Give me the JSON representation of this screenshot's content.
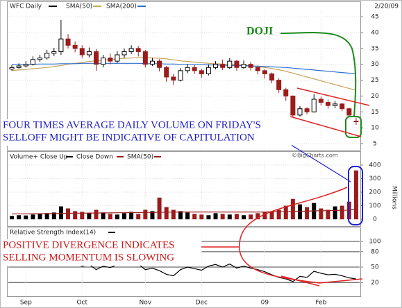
{
  "chart_data": [
    {
      "type": "candlestick",
      "title": "WFC Daily",
      "date": "2/20/09",
      "up_color": "#000000",
      "down_color": "#9b1c1c",
      "open": [
        28.5,
        29,
        29.5,
        30,
        31.5,
        32,
        33.5,
        34,
        38,
        36,
        35,
        33,
        34,
        30,
        32,
        31,
        33,
        34,
        35,
        34,
        30,
        31,
        29,
        26,
        25,
        28,
        29,
        28,
        27,
        29,
        30,
        29,
        31,
        29,
        30,
        29,
        28,
        27,
        25,
        22,
        20,
        14,
        16,
        15,
        19,
        18,
        17,
        17.5,
        16,
        12.1
      ],
      "high": [
        29.8,
        30.3,
        31,
        32.5,
        33,
        34.5,
        35.2,
        44,
        39.5,
        37.2,
        36,
        35.3,
        34.8,
        33,
        33.4,
        34.2,
        35,
        36,
        35.8,
        34.5,
        32,
        31.6,
        29.5,
        27,
        28.8,
        30,
        29.8,
        28.6,
        30,
        31,
        31.5,
        32,
        31.4,
        31.2,
        30.8,
        29.6,
        28.5,
        27.4,
        25.6,
        22.6,
        20.2,
        16.8,
        16.5,
        20.6,
        19.8,
        18.9,
        18.5,
        17.8,
        16.3,
        13.2
      ],
      "low": [
        28,
        28.6,
        29,
        29.6,
        30.8,
        31.5,
        32.6,
        33,
        35,
        33.8,
        32,
        32.2,
        28,
        29,
        30,
        30.3,
        32,
        33.2,
        32.5,
        29,
        29.5,
        27.8,
        24.5,
        23.5,
        24.6,
        27.2,
        27,
        25.8,
        26.5,
        28.4,
        28.2,
        28.5,
        28,
        28.6,
        28,
        26.8,
        25.5,
        24,
        21,
        18.5,
        13.2,
        13.5,
        14.2,
        14.8,
        17,
        16,
        16.2,
        15.2,
        13.5,
        10.9
      ],
      "close": [
        29,
        29.5,
        30,
        31.5,
        32,
        33.5,
        34,
        38,
        36,
        35,
        33,
        34,
        30,
        32,
        31,
        33,
        34,
        35,
        34,
        30,
        31,
        29,
        26,
        25,
        28,
        29,
        28,
        27,
        29,
        30,
        29,
        31,
        29,
        30,
        29,
        28,
        27,
        25,
        22,
        20,
        14,
        16,
        15,
        19,
        18,
        17,
        17.5,
        16,
        14,
        12
      ],
      "series": [
        {
          "name": "SMA(50)",
          "color": "#c8a35a",
          "values": [
            28,
            28.2,
            28.4,
            28.6,
            28.8,
            29,
            29.3,
            29.6,
            30,
            30.3,
            30.6,
            30.9,
            31.1,
            31.3,
            31.5,
            31.7,
            31.9,
            32,
            32.1,
            32.1,
            32,
            31.9,
            31.7,
            31.4,
            31.1,
            30.9,
            30.7,
            30.5,
            30.3,
            30.2,
            30.1,
            30,
            29.9,
            29.7,
            29.5,
            29.3,
            29,
            28.7,
            28.3,
            27.8,
            27.2,
            26.6,
            26,
            25.4,
            24.8,
            24.2,
            23.6,
            23,
            22.4,
            21.8
          ]
        },
        {
          "name": "SMA(200)",
          "color": "#2f6fd0",
          "values": [
            30,
            30,
            30,
            30,
            30.1,
            30.1,
            30.1,
            30.2,
            30.2,
            30.2,
            30.3,
            30.3,
            30.3,
            30.3,
            30.3,
            30.3,
            30.3,
            30.3,
            30.3,
            30.2,
            30.2,
            30.2,
            30.1,
            30.1,
            30,
            30,
            29.9,
            29.9,
            29.8,
            29.8,
            29.7,
            29.7,
            29.6,
            29.6,
            29.5,
            29.4,
            29.3,
            29.2,
            29.1,
            29,
            28.8,
            28.6,
            28.4,
            28.2,
            28,
            27.8,
            27.6,
            27.4,
            27.2,
            27
          ]
        }
      ],
      "ylim": [
        3.25,
        47
      ],
      "yticks": [
        5,
        10,
        15,
        20,
        25,
        30,
        35,
        40,
        45
      ],
      "xlim": [
        -0.5,
        49.5
      ],
      "grid": true
    },
    {
      "type": "bar",
      "y_label": "Millions",
      "legend_items": [
        {
          "name": "Volume+ Close Up",
          "color": "#000000"
        },
        {
          "name": "Close Down",
          "color": "#9b1c1c"
        }
      ],
      "values": [
        25,
        30,
        28,
        35,
        40,
        45,
        50,
        95,
        80,
        60,
        55,
        45,
        70,
        50,
        40,
        35,
        45,
        55,
        40,
        70,
        60,
        160,
        90,
        70,
        60,
        50,
        40,
        35,
        30,
        45,
        40,
        35,
        40,
        30,
        35,
        45,
        55,
        60,
        70,
        100,
        150,
        110,
        90,
        120,
        80,
        70,
        95,
        100,
        130,
        360
      ],
      "series": [
        {
          "name": "SMA(50)",
          "color": "#9b1c1c",
          "values": [
            40,
            40,
            40,
            41,
            41,
            42,
            42,
            43,
            44,
            45,
            45,
            46,
            46,
            47,
            47,
            48,
            48,
            49,
            49,
            50,
            50,
            52,
            53,
            53,
            54,
            54,
            54,
            54,
            54,
            54,
            54,
            54,
            54,
            54,
            54,
            54,
            54,
            55,
            55,
            56,
            58,
            59,
            60,
            62,
            63,
            64,
            65,
            66,
            68,
            74
          ]
        }
      ],
      "ylim": [
        -30,
        430
      ],
      "yticks": [
        0,
        100,
        200,
        300,
        400
      ],
      "xlim": [
        -0.5,
        49.5
      ],
      "grid": true
    },
    {
      "type": "line",
      "series": [
        {
          "name": "Relative Strength Index(14)",
          "color": "#000000",
          "values": [
            55,
            56,
            57,
            59,
            60,
            62,
            63,
            70,
            62,
            58,
            52,
            55,
            45,
            52,
            49,
            55,
            58,
            60,
            56,
            45,
            48,
            43,
            36,
            33,
            45,
            50,
            47,
            44,
            52,
            55,
            50,
            56,
            48,
            52,
            48,
            45,
            41,
            35,
            30,
            27,
            22,
            32,
            30,
            42,
            38,
            35,
            36,
            33,
            29,
            27
          ]
        }
      ],
      "ylim": [
        -8,
        113.5
      ],
      "yticks": [
        20,
        50,
        80,
        100
      ],
      "xlim": [
        -0.5,
        49.5
      ],
      "xticks": [
        {
          "value": 2,
          "label": "Sep"
        },
        {
          "value": 10,
          "label": "Oct"
        },
        {
          "value": 19,
          "label": "Nov"
        },
        {
          "value": 27,
          "label": "Dec"
        },
        {
          "value": 36,
          "label": "09"
        },
        {
          "value": 44,
          "label": "Feb"
        }
      ],
      "grid": true
    }
  ],
  "annotations": {
    "doji": "DOJI",
    "volume_note": [
      "FOUR TIMES AVERAGE DAILY VOLUME ON FRIDAY'S",
      "SELLOFF MIGHT BE INDICATIVE OF CAPITULATION"
    ],
    "rsi_note": [
      "POSITIVE DIVERGENCE INDICATES",
      "SELLING MOMENTUM IS SLOWING"
    ],
    "credit": "©BigCharts.com"
  }
}
